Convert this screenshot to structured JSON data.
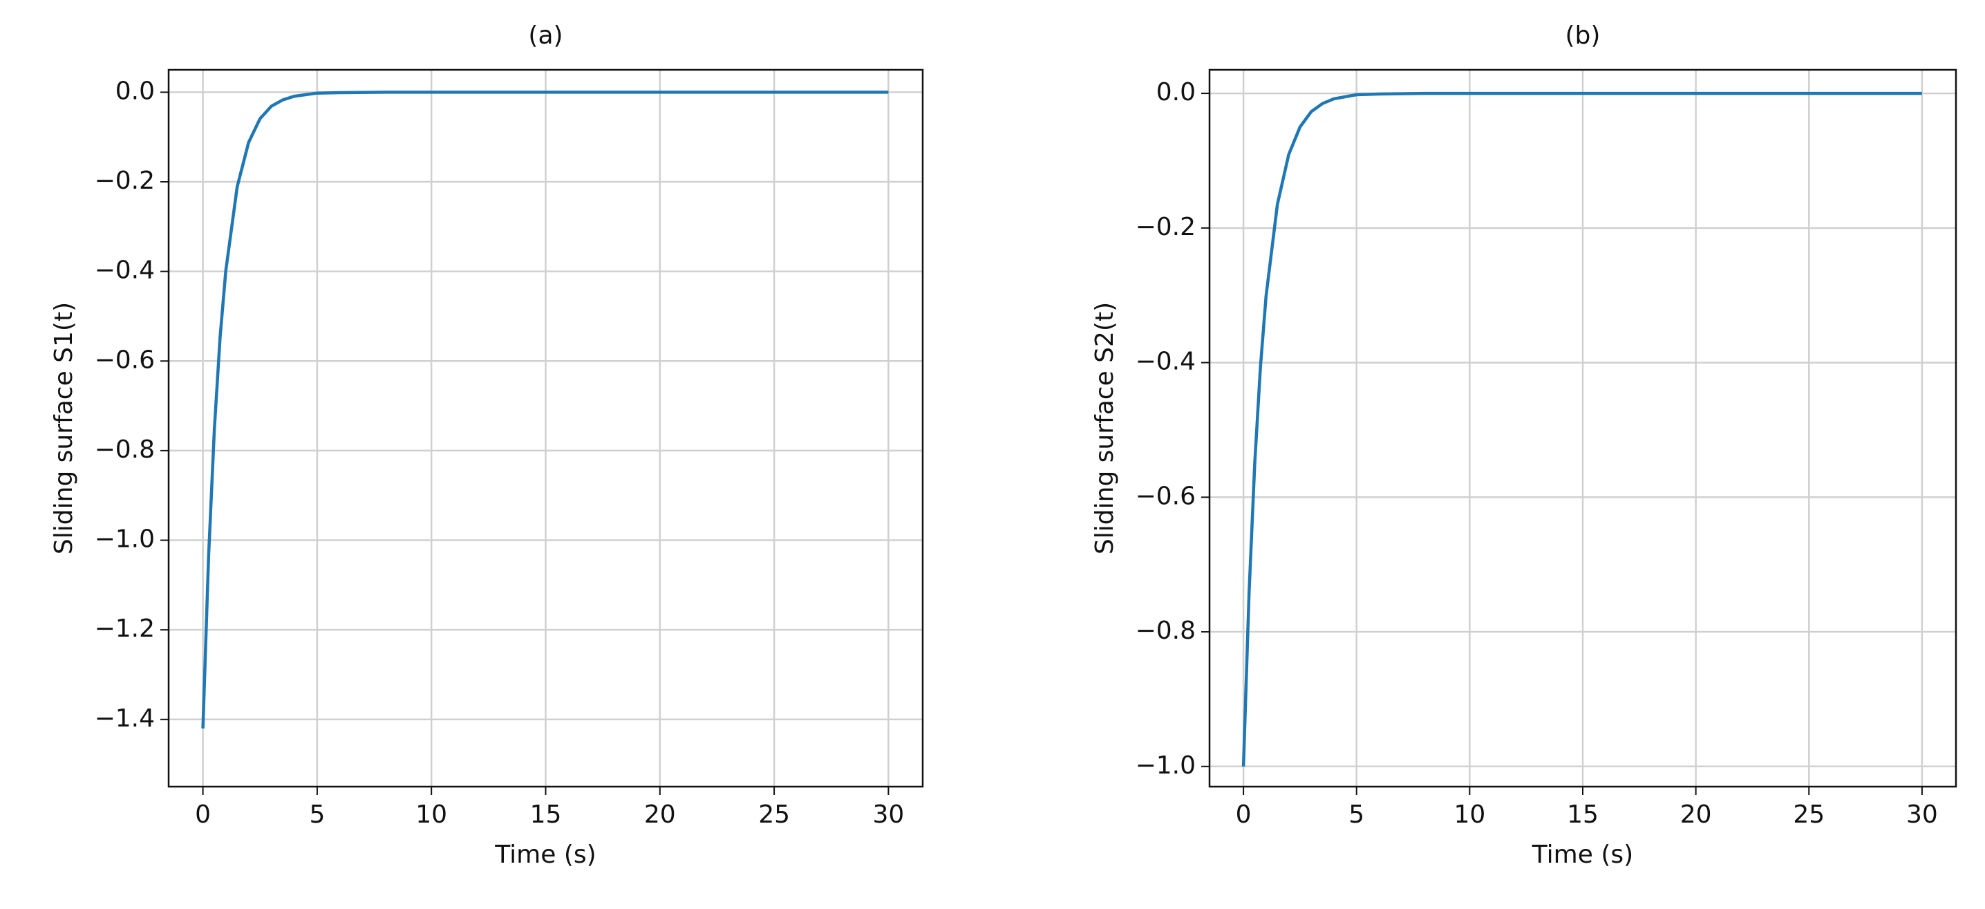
{
  "chart_data": [
    {
      "type": "line",
      "title": "(a)",
      "xlabel": "Time (s)",
      "ylabel": "Sliding surface S1(t)",
      "x": [
        0,
        0.25,
        0.5,
        0.75,
        1,
        1.5,
        2,
        2.5,
        3,
        3.5,
        4,
        5,
        6,
        8,
        10,
        15,
        20,
        25,
        30
      ],
      "series": [
        {
          "name": "S1(t)",
          "color": "#1f77b4",
          "values": [
            -1.42,
            -1.034,
            -0.753,
            -0.548,
            -0.399,
            -0.211,
            -0.112,
            -0.059,
            -0.031,
            -0.017,
            -0.009,
            -0.002,
            -0.001,
            0,
            0,
            0,
            0,
            0,
            0
          ]
        }
      ],
      "xlim": [
        -1.5,
        31.5
      ],
      "ylim": [
        -1.55,
        0.05
      ],
      "xticks": [
        0,
        5,
        10,
        15,
        20,
        25,
        30
      ],
      "yticks": [
        {
          "value": -1.4,
          "label": "−1.4"
        },
        {
          "value": -1.2,
          "label": "−1.2"
        },
        {
          "value": -1.0,
          "label": "−1.0"
        },
        {
          "value": -0.8,
          "label": "−0.8"
        },
        {
          "value": -0.6,
          "label": "−0.6"
        },
        {
          "value": -0.4,
          "label": "−0.4"
        },
        {
          "value": -0.2,
          "label": "−0.2"
        },
        {
          "value": 0,
          "label": "0.0"
        }
      ],
      "grid": true
    },
    {
      "type": "line",
      "title": "(b)",
      "xlabel": "Time (s)",
      "ylabel": "Sliding surface S2(t)",
      "x": [
        0,
        0.25,
        0.5,
        0.75,
        1,
        1.5,
        2,
        2.5,
        3,
        3.5,
        4,
        5,
        6,
        8,
        10,
        15,
        20,
        25,
        30
      ],
      "series": [
        {
          "name": "S2(t)",
          "color": "#1f77b4",
          "values": [
            -1.0,
            -0.741,
            -0.549,
            -0.407,
            -0.301,
            -0.165,
            -0.091,
            -0.05,
            -0.027,
            -0.015,
            -0.008,
            -0.002,
            -0.001,
            0,
            0,
            0,
            0,
            0,
            0
          ]
        }
      ],
      "xlim": [
        -1.5,
        31.5
      ],
      "ylim": [
        -1.03,
        0.035
      ],
      "xticks": [
        0,
        5,
        10,
        15,
        20,
        25,
        30
      ],
      "yticks": [
        {
          "value": -1.0,
          "label": "−1.0"
        },
        {
          "value": -0.8,
          "label": "−0.8"
        },
        {
          "value": -0.6,
          "label": "−0.6"
        },
        {
          "value": -0.4,
          "label": "−0.4"
        },
        {
          "value": -0.2,
          "label": "−0.2"
        },
        {
          "value": 0,
          "label": "0.0"
        }
      ],
      "grid": true
    }
  ]
}
